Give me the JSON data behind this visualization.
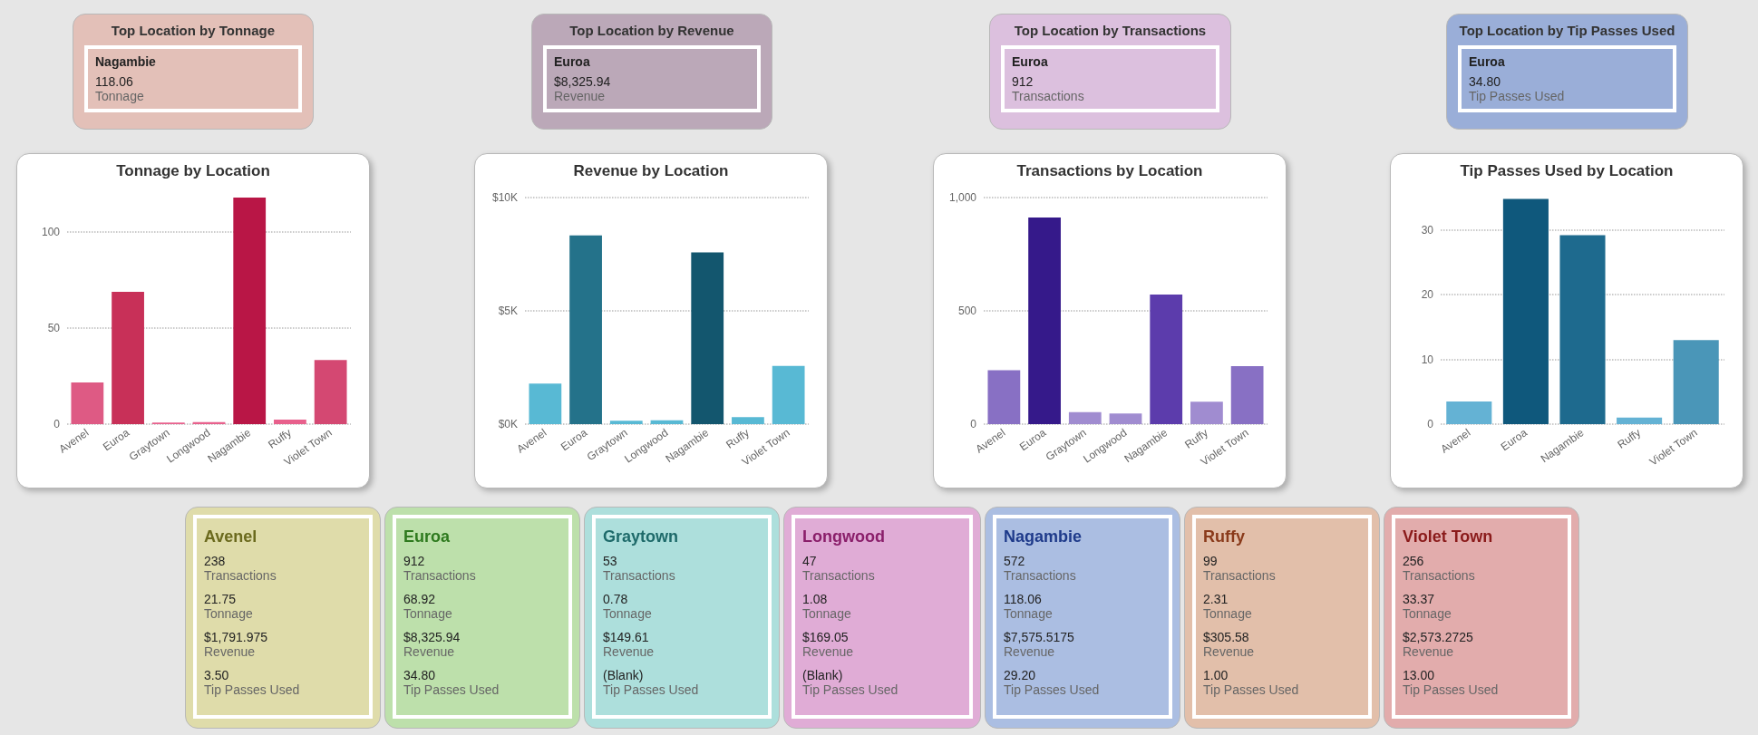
{
  "chart_data": [
    {
      "type": "other",
      "title": "Top Location by Tonnage",
      "annotations": [
        "Nagambie",
        "118.06",
        "Tonnage"
      ]
    },
    {
      "type": "other",
      "title": "Top Location by Revenue",
      "annotations": [
        "Euroa",
        "$8,325.94",
        "Revenue"
      ]
    },
    {
      "type": "other",
      "title": "Top Location by Transactions",
      "annotations": [
        "Euroa",
        "912",
        "Transactions"
      ]
    },
    {
      "type": "other",
      "title": "Top Location by Tip Passes Used",
      "annotations": [
        "Euroa",
        "34.80",
        "Tip Passes Used"
      ]
    },
    {
      "type": "bar",
      "title": "Tonnage by Location",
      "categories": [
        "Avenel",
        "Euroa",
        "Graytown",
        "Longwood",
        "Nagambie",
        "Ruffy",
        "Violet Town"
      ],
      "values": [
        21.75,
        68.92,
        0.78,
        1.08,
        118.06,
        2.31,
        33.37
      ],
      "colors": [
        "#de5a84",
        "#c83058",
        "#e8608c",
        "#e8608c",
        "#b91646",
        "#e8608c",
        "#d44872"
      ],
      "ylim": [
        0,
        118.06
      ],
      "yticks": [
        0,
        50,
        100
      ],
      "grid": "y"
    },
    {
      "type": "bar",
      "title": "Revenue by Location",
      "categories": [
        "Avenel",
        "Euroa",
        "Graytown",
        "Longwood",
        "Nagambie",
        "Ruffy",
        "Violet Town"
      ],
      "values": [
        1791.975,
        8325.94,
        149.61,
        169.05,
        7575.5175,
        305.58,
        2573.2725
      ],
      "colors": [
        "#58b9d4",
        "#24728a",
        "#58b9d4",
        "#58b9d4",
        "#13566e",
        "#58b9d4",
        "#58b9d4"
      ],
      "ylim": [
        0,
        10000
      ],
      "yticks": [
        {
          "value": 0,
          "label": "$0K"
        },
        {
          "value": 5000,
          "label": "$5K"
        },
        {
          "value": 10000,
          "label": "$10K"
        }
      ],
      "grid": "y"
    },
    {
      "type": "bar",
      "title": "Transactions by Location",
      "categories": [
        "Avenel",
        "Euroa",
        "Graytown",
        "Longwood",
        "Nagambie",
        "Ruffy",
        "Violet Town"
      ],
      "values": [
        238,
        912,
        53,
        47,
        572,
        99,
        256
      ],
      "colors": [
        "#8870c4",
        "#35198a",
        "#a08cd0",
        "#a08cd0",
        "#5c3cac",
        "#a08cd0",
        "#8870c4"
      ],
      "ylim": [
        0,
        1000
      ],
      "yticks": [
        0,
        500,
        {
          "value": 1000,
          "label": "1,000"
        }
      ],
      "grid": "y"
    },
    {
      "type": "bar",
      "title": "Tip Passes Used by Location",
      "categories": [
        "Avenel",
        "Euroa",
        "Nagambie",
        "Ruffy",
        "Violet Town"
      ],
      "values": [
        3.5,
        34.8,
        29.2,
        1.0,
        13.0
      ],
      "colors": [
        "#64b2d4",
        "#0f587c",
        "#1e6a8e",
        "#64b2d4",
        "#4a96b8"
      ],
      "ylim": [
        0,
        35
      ],
      "yticks": [
        0,
        10,
        20,
        30
      ],
      "grid": "y"
    },
    {
      "type": "other",
      "title": "Avenel",
      "annotations": [
        "238",
        "Transactions",
        "21.75",
        "Tonnage",
        "$1,791.975",
        "Revenue",
        "3.50",
        "Tip Passes Used"
      ]
    },
    {
      "type": "other",
      "title": "Euroa",
      "annotations": [
        "912",
        "Transactions",
        "68.92",
        "Tonnage",
        "$8,325.94",
        "Revenue",
        "34.80",
        "Tip Passes Used"
      ]
    },
    {
      "type": "other",
      "title": "Graytown",
      "annotations": [
        "53",
        "Transactions",
        "0.78",
        "Tonnage",
        "$149.61",
        "Revenue",
        "(Blank)",
        "Tip Passes Used"
      ]
    },
    {
      "type": "other",
      "title": "Longwood",
      "annotations": [
        "47",
        "Transactions",
        "1.08",
        "Tonnage",
        "$169.05",
        "Revenue",
        "(Blank)",
        "Tip Passes Used"
      ]
    },
    {
      "type": "other",
      "title": "Nagambie",
      "annotations": [
        "572",
        "Transactions",
        "118.06",
        "Tonnage",
        "$7,575.5175",
        "Revenue",
        "29.20",
        "Tip Passes Used"
      ]
    },
    {
      "type": "other",
      "title": "Ruffy",
      "annotations": [
        "99",
        "Transactions",
        "2.31",
        "Tonnage",
        "$305.58",
        "Revenue",
        "1.00",
        "Tip Passes Used"
      ]
    },
    {
      "type": "other",
      "title": "Violet Town",
      "annotations": [
        "256",
        "Transactions",
        "33.37",
        "Tonnage",
        "$2,573.2725",
        "Revenue",
        "13.00",
        "Tip Passes Used"
      ]
    }
  ]
}
